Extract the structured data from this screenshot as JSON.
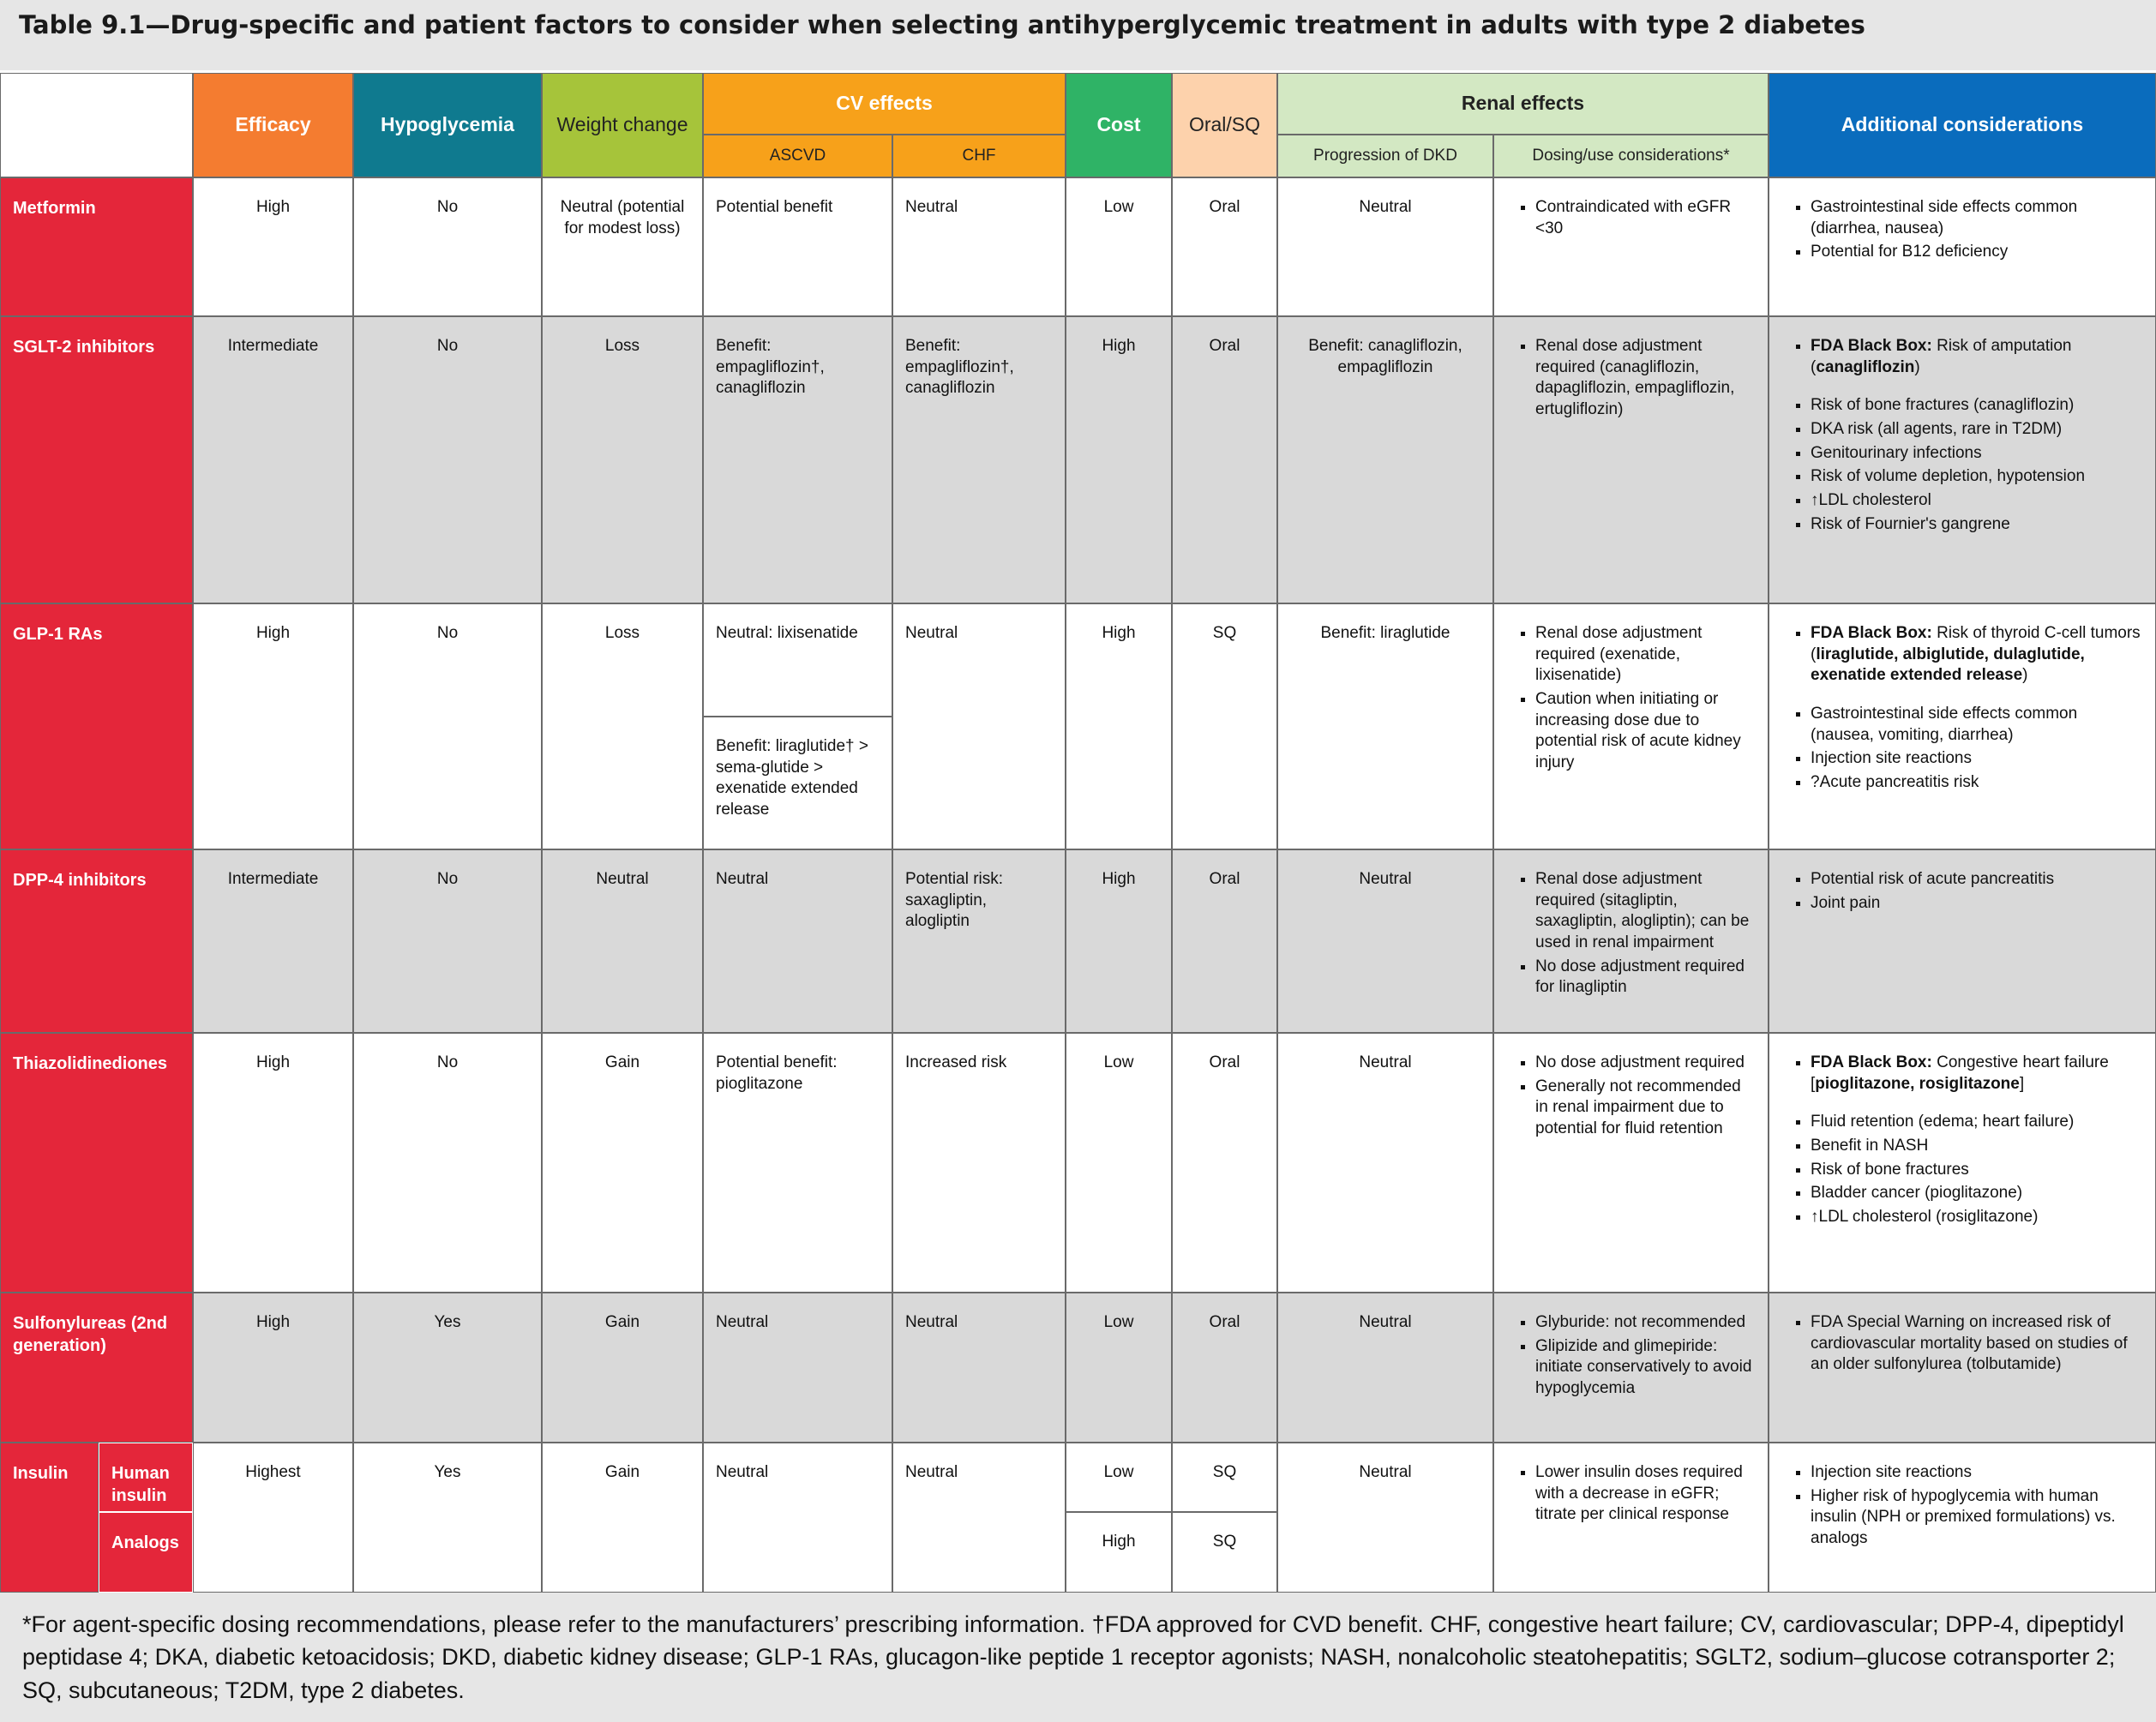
{
  "title": "Table 9.1—Drug-specific and patient factors to consider when selecting antihyperglycemic treatment in adults with type 2 diabetes",
  "columns": {
    "efficacy": "Efficacy",
    "hypoglycemia": "Hypoglycemia",
    "weight": "Weight change",
    "cv": "CV effects",
    "ascvd": "ASCVD",
    "chf": "CHF",
    "cost": "Cost",
    "route": "Oral/SQ",
    "renal": "Renal effects",
    "dkd": "Progression of DKD",
    "dosing": "Dosing/use considerations*",
    "additional": "Additional considerations"
  },
  "rows": [
    {
      "drug": "Metformin",
      "efficacy": "High",
      "hypoglycemia": "No",
      "weight": "Neutral (potential for modest loss)",
      "ascvd": "Potential benefit",
      "chf": "Neutral",
      "cost": "Low",
      "route": "Oral",
      "dkd": "Neutral",
      "dosing": [
        "Contraindicated with eGFR <30"
      ],
      "additional": [
        "Gastrointestinal side effects common (diarrhea, nausea)",
        "Potential for B12 deficiency"
      ]
    },
    {
      "drug": "SGLT-2 inhibitors",
      "efficacy": "Intermediate",
      "hypoglycemia": "No",
      "weight": "Loss",
      "ascvd": "Benefit: empagliflozin†, canagliflozin",
      "chf": "Benefit: empagliflozin†, canagliflozin",
      "cost": "High",
      "route": "Oral",
      "dkd": "Benefit: canagliflozin, empagliflozin",
      "dosing": [
        "Renal dose adjustment required (canagliflozin, dapagliflozin, empagliflozin, ertugliflozin)"
      ],
      "additional": [
        [
          {
            "bold": "FDA Black Box:"
          },
          " Risk of amputation (",
          {
            "bold": "canagliflozin"
          },
          ")"
        ],
        "Risk of bone fractures (canagliflozin)",
        "DKA risk (all agents, rare in T2DM)",
        "Genitourinary infections",
        "Risk of volume depletion, hypotension",
        "↑LDL cholesterol",
        "Risk of Fournier's gangrene"
      ]
    },
    {
      "drug": "GLP-1 RAs",
      "efficacy": "High",
      "hypoglycemia": "No",
      "weight": "Loss",
      "ascvd": [
        "Neutral: lixisenatide",
        "Benefit: liraglutide† > sema-glutide > exenatide extended release"
      ],
      "chf": "Neutral",
      "cost": "High",
      "route": "SQ",
      "dkd": "Benefit: liraglutide",
      "dosing": [
        "Renal dose adjustment required (exenatide, lixisenatide)",
        "Caution when initiating or increasing dose due to potential risk of acute kidney injury"
      ],
      "additional": [
        [
          {
            "bold": "FDA Black Box:"
          },
          " Risk of thyroid C-cell tumors (",
          {
            "bold": "liraglutide, albiglutide, dulaglutide, exenatide extended release"
          },
          ")"
        ],
        "Gastrointestinal side effects common (nausea, vomiting, diarrhea)",
        "Injection site reactions",
        "?Acute pancreatitis risk"
      ]
    },
    {
      "drug": "DPP-4 inhibitors",
      "efficacy": "Intermediate",
      "hypoglycemia": "No",
      "weight": "Neutral",
      "ascvd": "Neutral",
      "chf": "Potential risk: saxagliptin, alogliptin",
      "cost": "High",
      "route": "Oral",
      "dkd": "Neutral",
      "dosing": [
        "Renal dose adjustment required (sitagliptin, saxagliptin, alogliptin); can be used in renal impairment",
        "No dose adjustment required for linagliptin"
      ],
      "additional": [
        "Potential risk of acute pancreatitis",
        "Joint pain"
      ]
    },
    {
      "drug": "Thiazolidinediones",
      "efficacy": "High",
      "hypoglycemia": "No",
      "weight": "Gain",
      "ascvd": "Potential benefit: pioglitazone",
      "chf": "Increased risk",
      "cost": "Low",
      "route": "Oral",
      "dkd": "Neutral",
      "dosing": [
        "No dose adjustment required",
        "Generally not recommended in renal impairment due to potential for fluid retention"
      ],
      "additional": [
        [
          {
            "bold": "FDA Black Box:"
          },
          " Congestive heart failure [",
          {
            "bold": "pioglitazone, rosiglitazone"
          },
          "]"
        ],
        "Fluid retention (edema; heart failure)",
        "Benefit in NASH",
        "Risk of bone fractures",
        "Bladder cancer (pioglitazone)",
        "↑LDL cholesterol (rosiglitazone)"
      ]
    },
    {
      "drug": "Sulfonylureas (2nd generation)",
      "efficacy": "High",
      "hypoglycemia": "Yes",
      "weight": "Gain",
      "ascvd": "Neutral",
      "chf": "Neutral",
      "cost": "Low",
      "route": "Oral",
      "dkd": "Neutral",
      "dosing": [
        "Glyburide: not recommended",
        "Glipizide and glimepiride: initiate conservatively to avoid hypoglycemia"
      ],
      "additional": [
        "FDA Special Warning on increased risk of cardiovascular mortality based on studies of an older sulfonylurea (tolbutamide)"
      ]
    },
    {
      "drug": "Insulin",
      "subtypes": [
        "Human insulin",
        "Analogs"
      ],
      "efficacy": "Highest",
      "hypoglycemia": "Yes",
      "weight": "Gain",
      "ascvd": "Neutral",
      "chf": "Neutral",
      "cost": [
        "Low",
        "High"
      ],
      "route": [
        "SQ",
        "SQ"
      ],
      "dkd": "Neutral",
      "dosing": [
        "Lower insulin doses required with a decrease in eGFR; titrate per clinical response"
      ],
      "additional": [
        "Injection site reactions",
        "Higher risk of hypoglycemia with human insulin (NPH or premixed formulations) vs. analogs"
      ]
    }
  ],
  "footnote": "*For agent-specific dosing recommendations, please refer to the manufacturers’ prescribing information. †FDA approved for CVD benefit. CHF, congestive heart failure; CV, cardiovascular; DPP-4, dipeptidyl peptidase 4; DKA, diabetic ketoacidosis; DKD, diabetic kidney disease; GLP-1 RAs, glucagon-like peptide 1 receptor agonists; NASH, nonalcoholic steatohepatitis; SGLT2, sodium–glucose cotransporter 2; SQ, subcutaneous; T2DM, type 2 diabetes."
}
